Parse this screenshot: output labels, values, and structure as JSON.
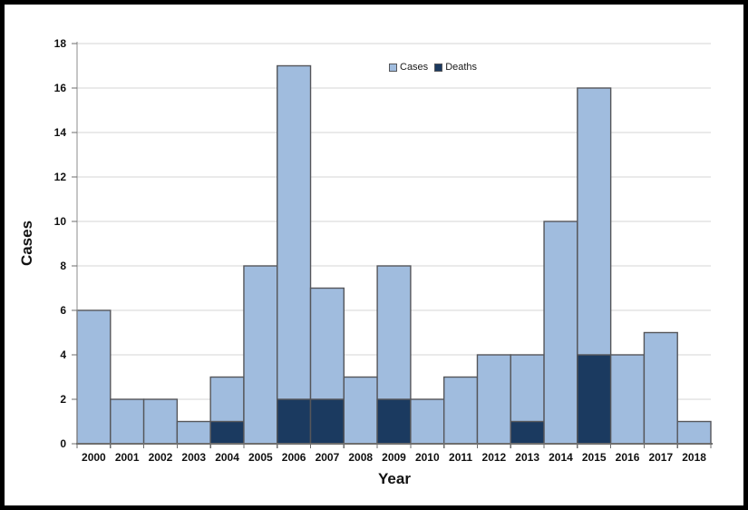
{
  "chart_data": {
    "type": "bar",
    "title": "",
    "xlabel": "Year",
    "ylabel": "Cases",
    "categories": [
      "2000",
      "2001",
      "2002",
      "2003",
      "2004",
      "2005",
      "2006",
      "2007",
      "2008",
      "2009",
      "2010",
      "2011",
      "2012",
      "2013",
      "2014",
      "2015",
      "2016",
      "2017",
      "2018"
    ],
    "series": [
      {
        "name": "Cases",
        "color": "#a0bcde",
        "values": [
          6,
          2,
          2,
          1,
          3,
          8,
          17,
          7,
          3,
          8,
          2,
          3,
          4,
          4,
          10,
          16,
          4,
          5,
          1
        ]
      },
      {
        "name": "Deaths",
        "color": "#1b3a60",
        "values": [
          0,
          0,
          0,
          0,
          1,
          0,
          2,
          2,
          0,
          2,
          0,
          0,
          0,
          1,
          0,
          4,
          0,
          0,
          0
        ]
      }
    ],
    "series_note": "Deaths drawn as dark overlay from baseline inside the Cases bar",
    "ylim": [
      0,
      18
    ],
    "ytick_step": 2,
    "grid": true,
    "legend_position": "top-center",
    "colors": {
      "grid": "#d6d6d6",
      "axis": "#8e8e8e",
      "tick": "#6e6e6e",
      "bar_border": "#55565a",
      "text": "#111111",
      "frame": "#000000",
      "background": "#ffffff"
    }
  }
}
